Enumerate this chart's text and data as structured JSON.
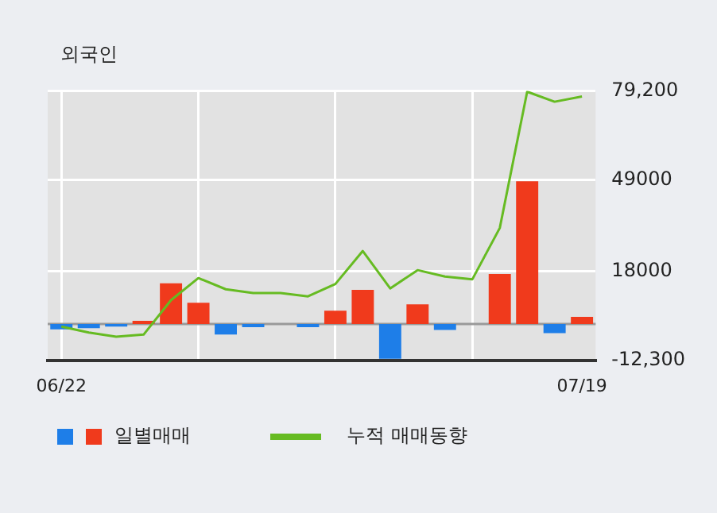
{
  "chart_data": {
    "type": "bar",
    "title": "외국인",
    "categories": [
      "06/22",
      null,
      null,
      null,
      null,
      null,
      null,
      null,
      null,
      null,
      null,
      null,
      null,
      null,
      null,
      null,
      null,
      null,
      null,
      "07/19"
    ],
    "series": [
      {
        "name": "일별매매",
        "colors": [
          "#1e7ee8",
          "#1e7ee8",
          "#1e7ee8",
          "#f03a1c",
          "#f03a1c",
          "#f03a1c",
          "#1e7ee8",
          "#1e7ee8",
          "#1e7ee8",
          "#1e7ee8",
          "#f03a1c",
          "#f03a1c",
          "#1e7ee8",
          "#f03a1c",
          "#1e7ee8",
          "#f03a1c",
          "#f03a1c",
          "#f03a1c",
          "#1e7ee8",
          "#f03a1c"
        ],
        "values": [
          -1800,
          -1400,
          -900,
          1100,
          13800,
          7200,
          -3600,
          -1100,
          0,
          -1100,
          4500,
          11600,
          -11800,
          6700,
          -2000,
          0,
          17000,
          48500,
          -3100,
          2400
        ]
      },
      {
        "name": "누적 매매동향",
        "type": "line",
        "color": "#66bb22",
        "values": [
          -900,
          -2900,
          -4300,
          -3600,
          8100,
          15600,
          11800,
          10500,
          10500,
          9400,
          13600,
          24800,
          12100,
          18300,
          16100,
          15200,
          32600,
          78900,
          75500,
          77300
        ]
      }
    ],
    "ylim": [
      -12300,
      79200
    ],
    "yticks": [
      {
        "value": 79200,
        "label": "79,200"
      },
      49000,
      18000,
      {
        "value": -12300,
        "label": "-12,300"
      }
    ],
    "grid": true,
    "legend": "bottom",
    "marker": "none",
    "line_style": "solid"
  }
}
